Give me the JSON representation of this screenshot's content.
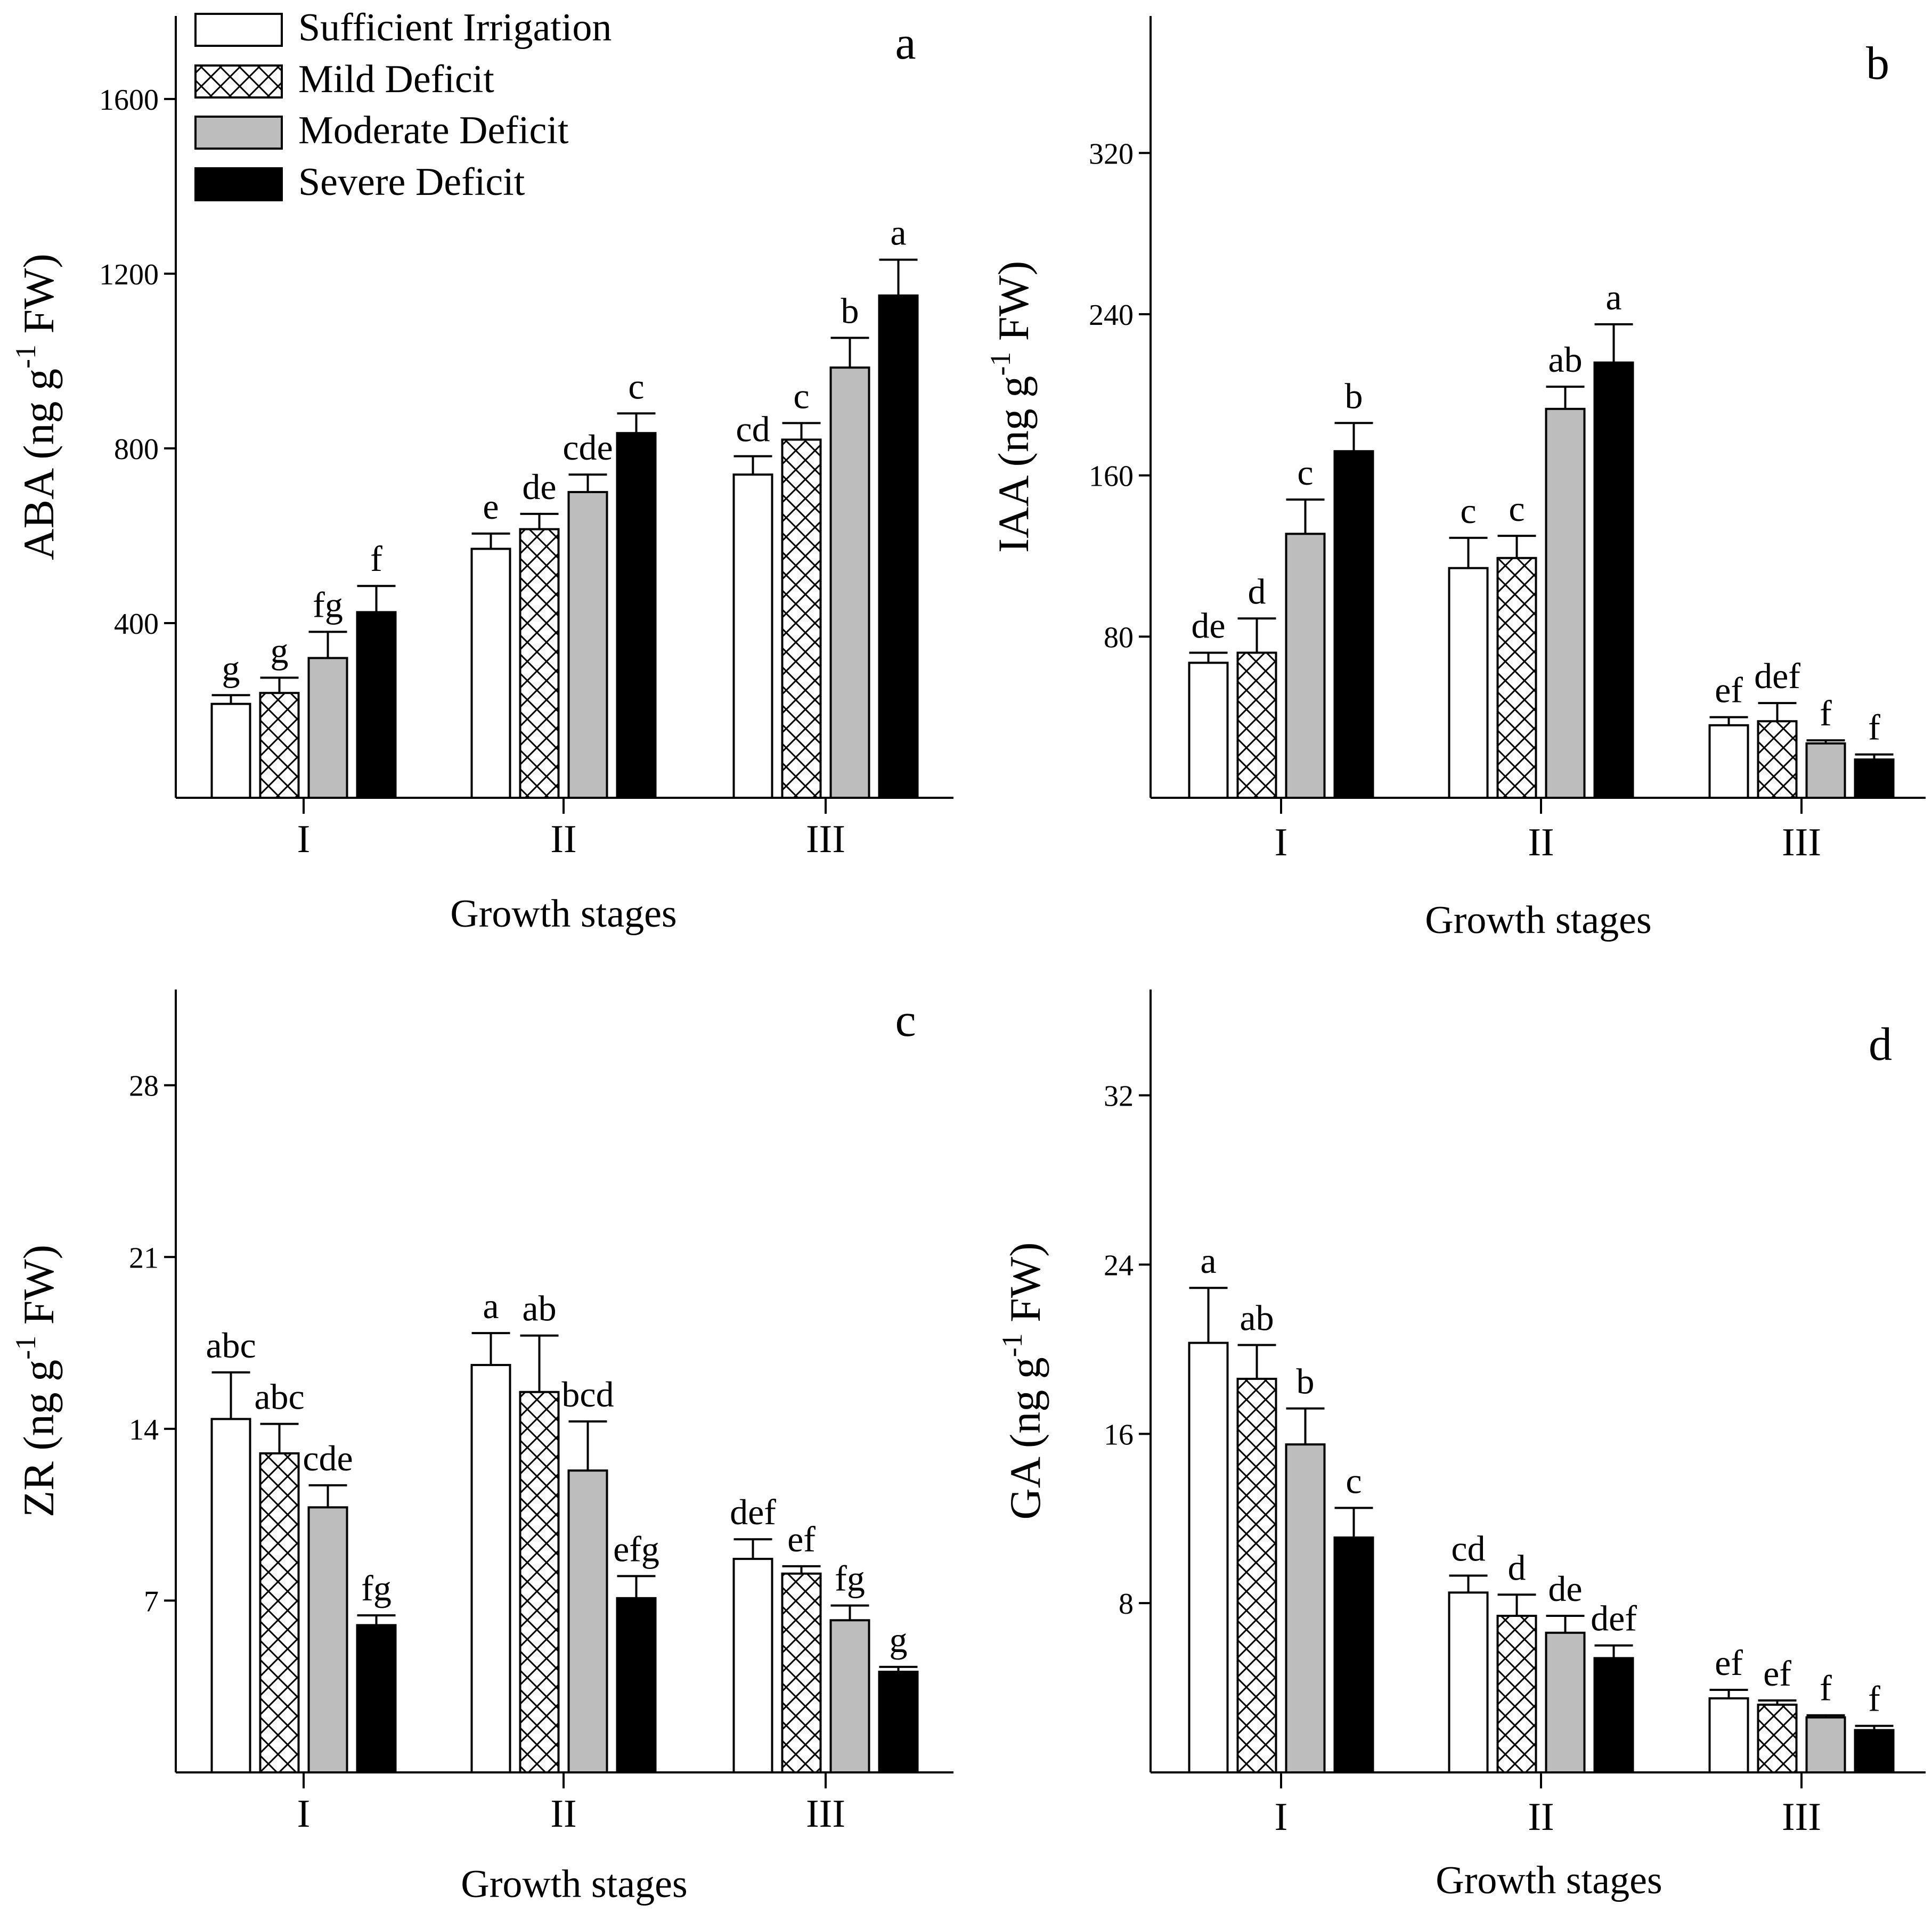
{
  "legend": {
    "items": [
      {
        "label": "Sufficient Irrigation",
        "style": "white"
      },
      {
        "label": "Mild Deficit",
        "style": "crosshatch"
      },
      {
        "label": "Moderate Deficit",
        "style": "gray"
      },
      {
        "label": "Severe Deficit",
        "style": "black"
      }
    ]
  },
  "colors": {
    "white": "#ffffff",
    "gray": "#bdbdbd",
    "black": "#000000",
    "axis": "#000000"
  },
  "chart_data": [
    {
      "type": "bar",
      "panel_label": "a",
      "ylabel_main": "ABA (ng g",
      "ylabel_sup": "-1",
      "ylabel_end": " FW)",
      "xlabel": "Growth stages",
      "categories": [
        "I",
        "II",
        "III"
      ],
      "ylim": [
        0,
        1790
      ],
      "yticks": [
        400,
        800,
        1200,
        1600
      ],
      "series": [
        {
          "name": "Sufficient Irrigation",
          "values": [
            215,
            570,
            740
          ],
          "errors": [
            20,
            35,
            42
          ]
        },
        {
          "name": "Mild Deficit",
          "values": [
            240,
            615,
            820
          ],
          "errors": [
            35,
            35,
            38
          ]
        },
        {
          "name": "Moderate Deficit",
          "values": [
            320,
            700,
            985
          ],
          "errors": [
            60,
            40,
            68
          ]
        },
        {
          "name": "Severe Deficit",
          "values": [
            425,
            835,
            1150
          ],
          "errors": [
            60,
            45,
            82
          ]
        }
      ],
      "letters": [
        [
          "g",
          "e",
          "cd"
        ],
        [
          "g",
          "de",
          "c"
        ],
        [
          "fg",
          "cde",
          "b"
        ],
        [
          "f",
          "c",
          "a"
        ]
      ]
    },
    {
      "type": "bar",
      "panel_label": "b",
      "ylabel_main": "IAA (ng g",
      "ylabel_sup": "-1",
      "ylabel_end": " FW)",
      "xlabel": "Growth stages",
      "categories": [
        "I",
        "II",
        "III"
      ],
      "ylim": [
        0,
        388
      ],
      "yticks": [
        80,
        160,
        240,
        320
      ],
      "series": [
        {
          "name": "Sufficient Irrigation",
          "values": [
            67,
            114,
            36
          ],
          "errors": [
            5,
            15,
            4
          ]
        },
        {
          "name": "Mild Deficit",
          "values": [
            72,
            119,
            38
          ],
          "errors": [
            17,
            11,
            9
          ]
        },
        {
          "name": "Moderate Deficit",
          "values": [
            131,
            193,
            27
          ],
          "errors": [
            17,
            11,
            1.5
          ]
        },
        {
          "name": "Severe Deficit",
          "values": [
            172,
            216,
            19
          ],
          "errors": [
            14,
            19,
            2.5
          ]
        }
      ],
      "letters": [
        [
          "de",
          "c",
          "ef"
        ],
        [
          "d",
          "c",
          "def"
        ],
        [
          "c",
          "ab",
          "f"
        ],
        [
          "b",
          "a",
          "f"
        ]
      ]
    },
    {
      "type": "bar",
      "panel_label": "c",
      "ylabel_main": "ZR (ng g",
      "ylabel_sup": "-1",
      "ylabel_end": " FW)",
      "xlabel": "Growth stages",
      "categories": [
        "I",
        "II",
        "III"
      ],
      "ylim": [
        0,
        31.9
      ],
      "yticks": [
        7,
        14,
        21,
        28
      ],
      "series": [
        {
          "name": "Sufficient Irrigation",
          "values": [
            14.4,
            16.6,
            8.7
          ],
          "errors": [
            1.9,
            1.3,
            0.8
          ]
        },
        {
          "name": "Mild Deficit",
          "values": [
            13.0,
            15.5,
            8.1
          ],
          "errors": [
            1.2,
            2.3,
            0.3
          ]
        },
        {
          "name": "Moderate Deficit",
          "values": [
            10.8,
            12.3,
            6.2
          ],
          "errors": [
            0.9,
            2.0,
            0.6
          ]
        },
        {
          "name": "Severe Deficit",
          "values": [
            6.0,
            7.1,
            4.1
          ],
          "errors": [
            0.4,
            0.9,
            0.2
          ]
        }
      ],
      "letters": [
        [
          "abc",
          "a",
          "def"
        ],
        [
          "abc",
          "ab",
          "ef"
        ],
        [
          "cde",
          "bcd",
          "fg"
        ],
        [
          "fg",
          "efg",
          "g"
        ]
      ]
    },
    {
      "type": "bar",
      "panel_label": "d",
      "ylabel_main": "GA (ng g",
      "ylabel_sup": "-1",
      "ylabel_end": " FW)",
      "xlabel": "Growth stages",
      "categories": [
        "I",
        "II",
        "III"
      ],
      "ylim": [
        0,
        37
      ],
      "yticks": [
        8,
        16,
        24,
        32
      ],
      "series": [
        {
          "name": "Sufficient Irrigation",
          "values": [
            20.3,
            8.5,
            3.5
          ],
          "errors": [
            2.6,
            0.8,
            0.4
          ]
        },
        {
          "name": "Mild Deficit",
          "values": [
            18.6,
            7.4,
            3.2
          ],
          "errors": [
            1.6,
            1.0,
            0.2
          ]
        },
        {
          "name": "Moderate Deficit",
          "values": [
            15.5,
            6.6,
            2.6
          ],
          "errors": [
            1.7,
            0.8,
            0.1
          ]
        },
        {
          "name": "Severe Deficit",
          "values": [
            11.1,
            5.4,
            2.0
          ],
          "errors": [
            1.4,
            0.6,
            0.2
          ]
        }
      ],
      "letters": [
        [
          "a",
          "cd",
          "ef"
        ],
        [
          "ab",
          "d",
          "ef"
        ],
        [
          "b",
          "de",
          "f"
        ],
        [
          "c",
          "def",
          "f"
        ]
      ]
    }
  ]
}
